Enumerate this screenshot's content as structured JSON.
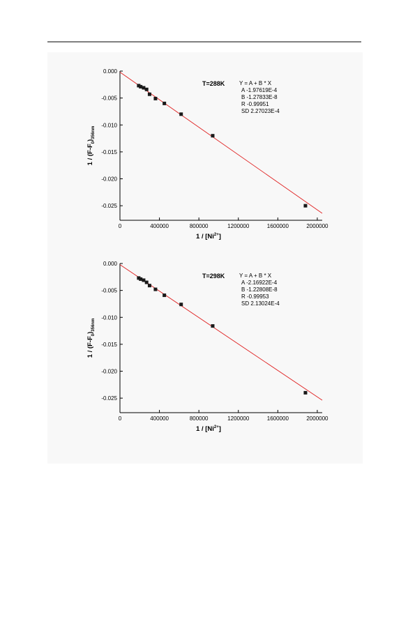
{
  "chart_data": [
    {
      "type": "scatter",
      "x": [
        190000,
        210000,
        240000,
        270000,
        300000,
        360000,
        450000,
        620000,
        940000,
        1880000
      ],
      "values": [
        -0.0027,
        -0.0029,
        -0.0031,
        -0.0034,
        -0.0043,
        -0.0051,
        -0.006,
        -0.008,
        -0.012,
        -0.025
      ],
      "fit": {
        "intercept": -0.000197619,
        "slope": -1.27833e-08
      },
      "color": "#1a1a1a",
      "fit_color": "#e02020",
      "xlim": [
        0,
        2050000
      ],
      "ylim": [
        -0.0277,
        0
      ],
      "xticks": [
        0,
        400000,
        800000,
        1200000,
        1600000,
        2000000
      ],
      "yticks": [
        {
          "value": 0,
          "label": "0.000"
        },
        {
          "value": -0.005,
          "label": "-0.005"
        },
        {
          "value": -0.01,
          "label": "-0.010"
        },
        {
          "value": -0.015,
          "label": "-0.015"
        },
        {
          "value": -0.02,
          "label": "-0.020"
        },
        {
          "value": -0.025,
          "label": "-0.025"
        }
      ],
      "x_label": [
        "1 / [Ni",
        "2+",
        "]"
      ],
      "y_label": [
        "1 / (F-F",
        "0",
        ")",
        "356nm"
      ],
      "temperature": "T=288K",
      "fit_text": [
        "Y = A + B * X",
        "A  -1.97619E-4",
        "B  -1.27833E-8",
        "R  -0.99951",
        "SD  2.27023E-4"
      ]
    },
    {
      "type": "scatter",
      "x": [
        190000,
        210000,
        240000,
        270000,
        300000,
        360000,
        450000,
        620000,
        940000,
        1880000
      ],
      "values": [
        -0.0027,
        -0.0029,
        -0.0031,
        -0.0035,
        -0.0041,
        -0.0048,
        -0.0059,
        -0.0076,
        -0.0116,
        -0.024
      ],
      "fit": {
        "intercept": -0.000216922,
        "slope": -1.22808e-08
      },
      "color": "#1a1a1a",
      "fit_color": "#e02020",
      "xlim": [
        0,
        2050000
      ],
      "ylim": [
        -0.0277,
        0
      ],
      "xticks": [
        0,
        400000,
        800000,
        1200000,
        1600000,
        2000000
      ],
      "yticks": [
        {
          "value": 0,
          "label": "0.000"
        },
        {
          "value": -0.005,
          "label": "-0.005"
        },
        {
          "value": -0.01,
          "label": "-0.010"
        },
        {
          "value": -0.015,
          "label": "-0.015"
        },
        {
          "value": -0.02,
          "label": "-0.020"
        },
        {
          "value": -0.025,
          "label": "-0.025"
        }
      ],
      "x_label": [
        "1 / [Ni",
        "2+",
        "]"
      ],
      "y_label": [
        "1 / (F-F",
        "0",
        ")",
        "356nm"
      ],
      "temperature": "T=298K",
      "fit_text": [
        "Y = A + B * X",
        "A  -2.16922E-4",
        "B  -1.22808E-8",
        "R  -0.99953",
        "SD  2.13024E-4"
      ]
    }
  ]
}
